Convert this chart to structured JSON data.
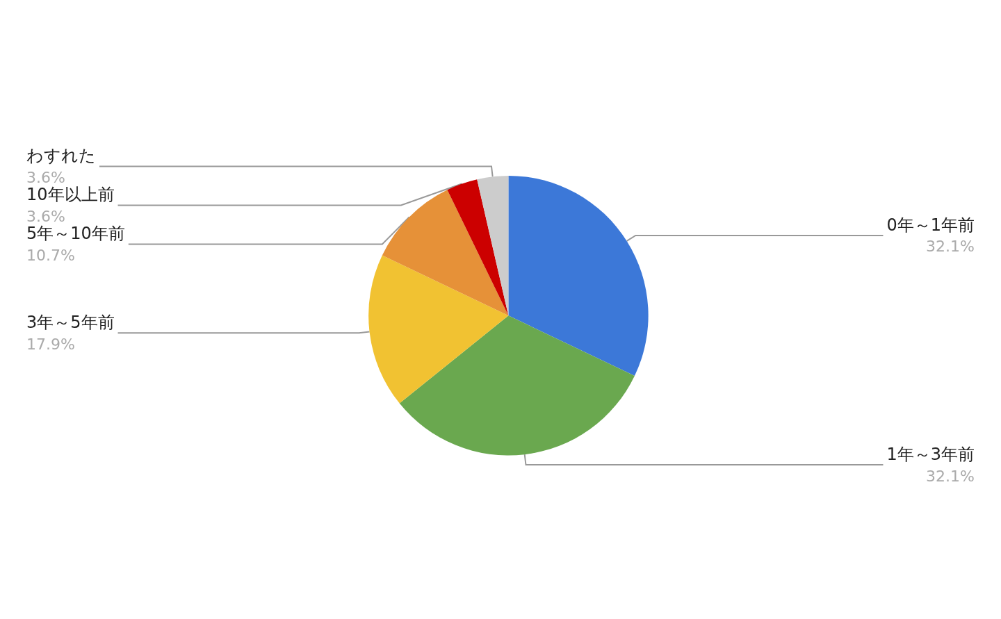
{
  "chart_data": {
    "type": "pie",
    "categories": [
      "0年～1年前",
      "1年～3年前",
      "3年～5年前",
      "5年～10年前",
      "10年以上前",
      "わすれた"
    ],
    "values": [
      32.1,
      32.1,
      17.9,
      10.7,
      3.6,
      3.6
    ],
    "colors": [
      "#3c78d8",
      "#6aa84f",
      "#f1c232",
      "#e69138",
      "#cc0000",
      "#cccccc"
    ],
    "value_labels": [
      "32.1%",
      "32.1%",
      "17.9%",
      "10.7%",
      "3.6%",
      "3.6%"
    ],
    "legend": false
  }
}
